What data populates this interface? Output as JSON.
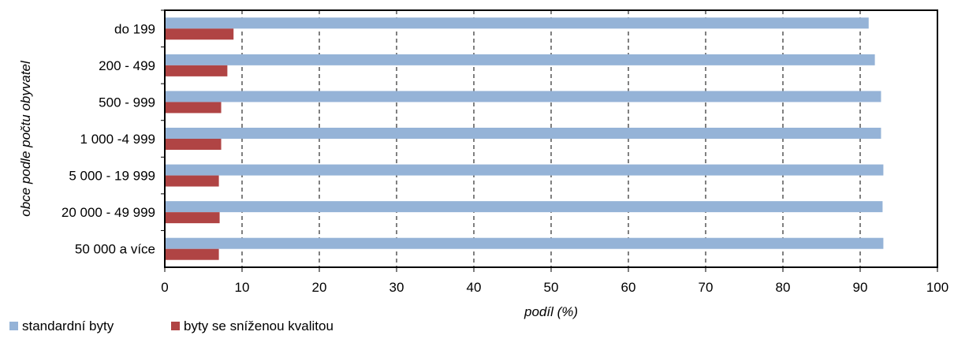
{
  "chart_data": {
    "type": "bar",
    "orientation": "horizontal",
    "title": "",
    "xlabel": "podíl (%)",
    "ylabel": "obce podle počtu obyvatel",
    "xlim": [
      0,
      100
    ],
    "x_ticks": [
      "0",
      "10",
      "20",
      "30",
      "40",
      "50",
      "60",
      "70",
      "80",
      "90",
      "100"
    ],
    "grid": "vertical dashed",
    "legend_position": "bottom-left",
    "categories": [
      "do 199",
      "200 - 499",
      "500 - 999",
      "1 000 -4 999",
      "5 000 - 19 999",
      "20 000 - 49 999",
      "50 000 a více"
    ],
    "series": [
      {
        "name": "standardní byty",
        "color": "#95b3d7",
        "values": [
          91.1,
          91.9,
          92.7,
          92.7,
          93.0,
          92.9,
          93.0
        ]
      },
      {
        "name": "byty se sníženou kvalitou",
        "color": "#b04444",
        "values": [
          8.9,
          8.1,
          7.3,
          7.3,
          7.0,
          7.1,
          7.0
        ]
      }
    ]
  }
}
